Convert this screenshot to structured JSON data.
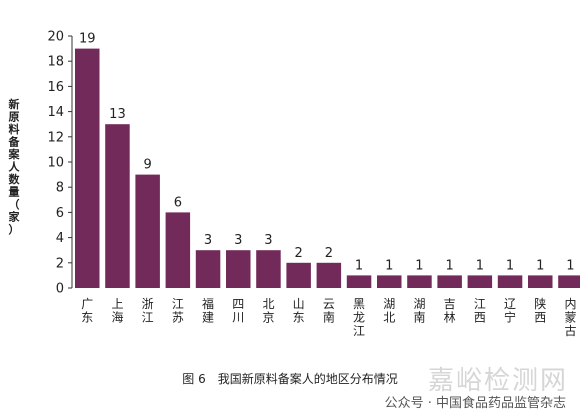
{
  "chart_data": {
    "type": "bar",
    "ylabel": "新原料备案人数量（家）",
    "caption": "图 6　我国新原料备案人的地区分布情况",
    "categories": [
      "广东",
      "上海",
      "浙江",
      "江苏",
      "福建",
      "四川",
      "北京",
      "山东",
      "云南",
      "黑龙江",
      "湖北",
      "湖南",
      "吉林",
      "江西",
      "辽宁",
      "陕西",
      "内蒙古"
    ],
    "values": [
      19,
      13,
      9,
      6,
      3,
      3,
      3,
      2,
      2,
      1,
      1,
      1,
      1,
      1,
      1,
      1,
      1
    ],
    "ylim": [
      0,
      20
    ],
    "yticks": [
      0,
      2,
      4,
      6,
      8,
      10,
      12,
      14,
      16,
      18,
      20
    ],
    "bar_color": "#722a5a",
    "grid": false
  },
  "watermark": {
    "site": "嘉峪检测网",
    "wechat": "公众号 · 中国食品药品监管杂志"
  }
}
